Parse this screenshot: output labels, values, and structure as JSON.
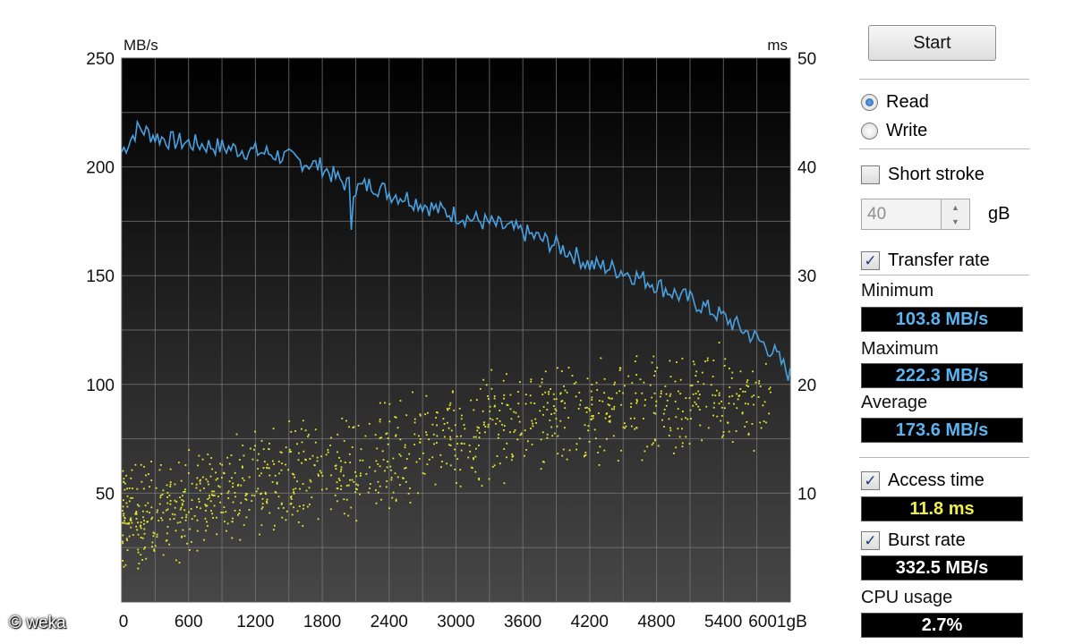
{
  "chart_data": {
    "type": "line",
    "xlabel": "gB",
    "ylabel_left": "MB/s",
    "ylabel_right": "ms",
    "xlim": [
      0,
      6001
    ],
    "ylim_left": [
      0,
      250
    ],
    "ylim_right": [
      0,
      50
    ],
    "x_ticks": [
      "0",
      "600",
      "1200",
      "1800",
      "2400",
      "3000",
      "3600",
      "4200",
      "4800",
      "5400",
      "6001gB"
    ],
    "y_ticks_left": [
      "250",
      "200",
      "150",
      "100",
      "50"
    ],
    "y_ticks_right": [
      "50",
      "40",
      "30",
      "20",
      "10"
    ],
    "grid": true,
    "series": [
      {
        "name": "Transfer rate",
        "axis": "left",
        "color": "#49a0e0",
        "x": [
          0,
          150,
          300,
          450,
          600,
          750,
          900,
          1050,
          1200,
          1350,
          1500,
          1650,
          1800,
          1950,
          2100,
          2250,
          2400,
          2550,
          2700,
          2850,
          3000,
          3150,
          3300,
          3450,
          3600,
          3750,
          3900,
          4050,
          4200,
          4350,
          4500,
          4650,
          4800,
          4950,
          5100,
          5250,
          5400,
          5550,
          5700,
          5850,
          6001
        ],
        "y": [
          207,
          218,
          214,
          212,
          211,
          210,
          209,
          208,
          207,
          206,
          204,
          202,
          200,
          194,
          190,
          192,
          188,
          186,
          183,
          180,
          178,
          176,
          174,
          172,
          170,
          167,
          164,
          160,
          155,
          154,
          152,
          149,
          146,
          142,
          139,
          135,
          131,
          126,
          121,
          115,
          104
        ]
      },
      {
        "name": "Access time",
        "axis": "right",
        "color": "#e8e832",
        "style": "scatter",
        "trend_x": [
          0,
          1000,
          2000,
          3000,
          4000,
          5000,
          5800
        ],
        "trend_y": [
          7.5,
          10.5,
          12.5,
          15.5,
          17.5,
          18.5,
          19
        ]
      }
    ]
  },
  "panel": {
    "start_label": "Start",
    "read_label": "Read",
    "write_label": "Write",
    "short_stroke_label": "Short stroke",
    "stroke_value": "40",
    "stroke_unit": "gB",
    "transfer_rate_label": "Transfer rate",
    "minimum_label": "Minimum",
    "minimum_value": "103.8 MB/s",
    "maximum_label": "Maximum",
    "maximum_value": "222.3 MB/s",
    "average_label": "Average",
    "average_value": "173.6 MB/s",
    "access_time_label": "Access time",
    "access_time_value": "11.8 ms",
    "burst_rate_label": "Burst rate",
    "burst_rate_value": "332.5 MB/s",
    "cpu_usage_label": "CPU usage",
    "cpu_usage_value": "2.7%",
    "check_mark": "✓",
    "colors": {
      "transfer_value": "#5bb4f0",
      "access_value": "#f0f04a",
      "plain_value": "#ffffff"
    }
  },
  "watermark": "© weka"
}
